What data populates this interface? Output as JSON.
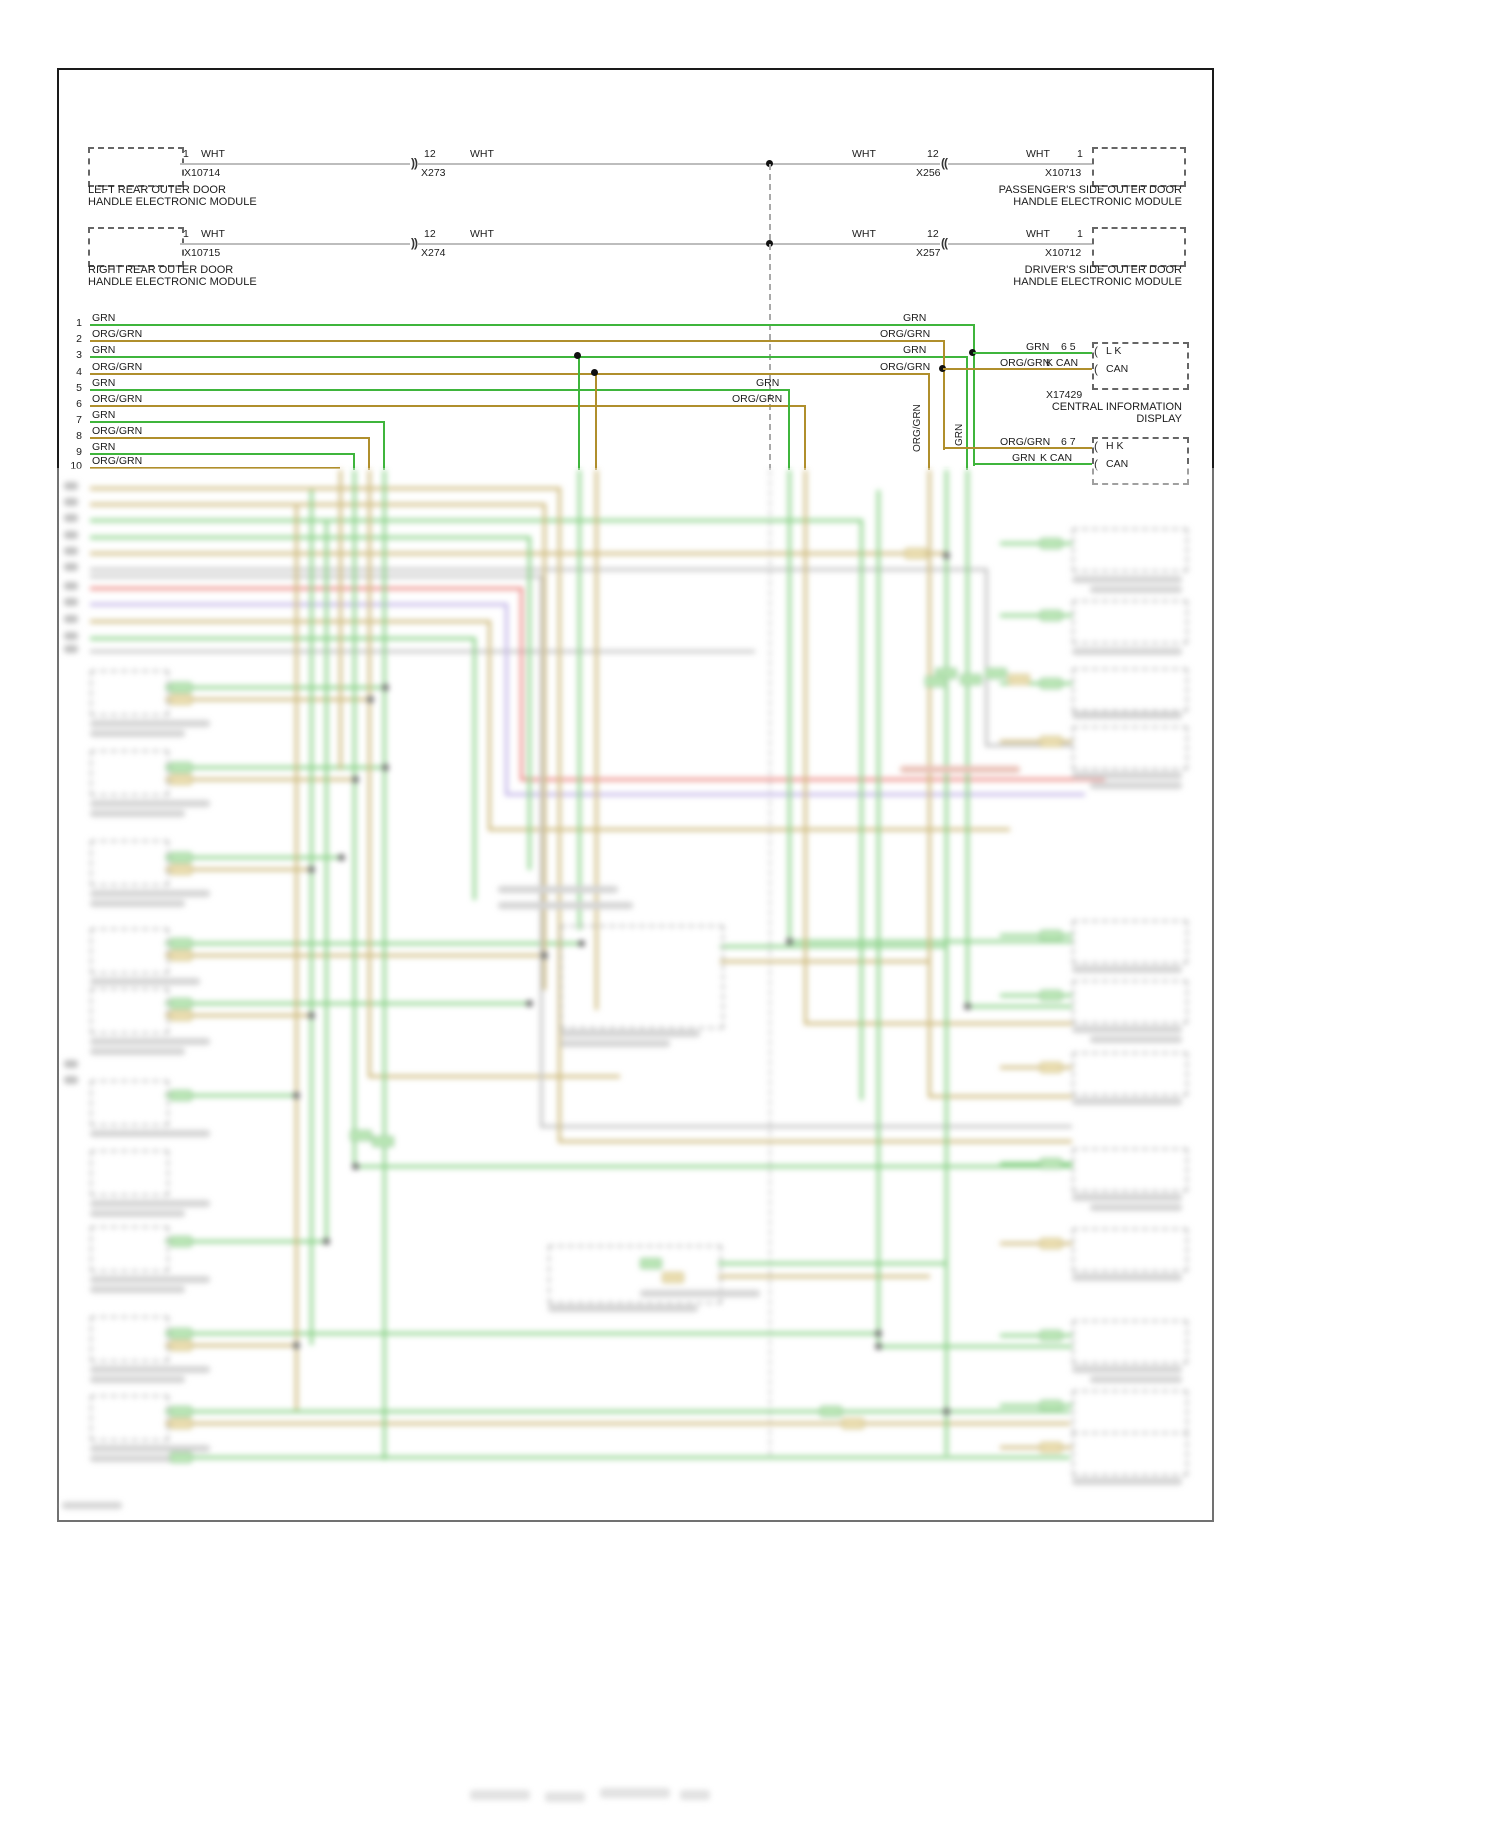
{
  "modules": {
    "left_rear": {
      "line1": "LEFT REAR OUTER DOOR",
      "line2": "HANDLE ELECTRONIC MODULE",
      "connector": "X10714",
      "pin": "1",
      "wire": "WHT"
    },
    "right_rear": {
      "line1": "RIGHT REAR OUTER DOOR",
      "line2": "HANDLE ELECTRONIC MODULE",
      "connector": "X10715",
      "pin": "1",
      "wire": "WHT"
    },
    "passenger": {
      "line1": "PASSENGER'S SIDE OUTER DOOR",
      "line2": "HANDLE ELECTRONIC MODULE",
      "connector": "X10713",
      "pin": "1",
      "wire": "WHT"
    },
    "driver": {
      "line1": "DRIVER'S SIDE OUTER DOOR",
      "line2": "HANDLE ELECTRONIC MODULE",
      "connector": "X10712",
      "pin": "1",
      "wire": "WHT"
    }
  },
  "inline_connectors": {
    "x273": {
      "id": "X273",
      "pin": "12",
      "wire": "WHT"
    },
    "x274": {
      "id": "X274",
      "pin": "12",
      "wire": "WHT"
    },
    "x256": {
      "id": "X256",
      "pin": "12",
      "wire": "WHT"
    },
    "x257": {
      "id": "X257",
      "pin": "12",
      "wire": "WHT"
    }
  },
  "display": {
    "name1": "CENTRAL INFORMATION",
    "name2": "DISPLAY",
    "connector": "X17429",
    "conn_top": {
      "wire1": "GRN",
      "pins": "6 5",
      "sig1": "L K",
      "wire2": "ORG/GRN",
      "net2": "K CAN",
      "sig2": "CAN"
    },
    "conn_bottom": {
      "wire1": "ORG/GRN",
      "pins": "6 7",
      "sig1": "H K",
      "wire2": "GRN",
      "net2": "K CAN",
      "sig2": "CAN"
    }
  },
  "bus": {
    "rows": [
      {
        "num": "1",
        "wire": "GRN"
      },
      {
        "num": "2",
        "wire": "ORG/GRN"
      },
      {
        "num": "3",
        "wire": "GRN"
      },
      {
        "num": "4",
        "wire": "ORG/GRN"
      },
      {
        "num": "5",
        "wire": "GRN"
      },
      {
        "num": "6",
        "wire": "ORG/GRN"
      },
      {
        "num": "7",
        "wire": "GRN"
      },
      {
        "num": "8",
        "wire": "ORG/GRN"
      },
      {
        "num": "9",
        "wire": "GRN"
      },
      {
        "num": "10",
        "wire": "ORG/GRN"
      }
    ],
    "right_labels": [
      "GRN",
      "ORG/GRN",
      "GRN",
      "ORG/GRN",
      "GRN",
      "ORG/GRN"
    ],
    "vertical_labels": [
      "ORG/GRN",
      "GRN"
    ]
  },
  "colors": {
    "grn": "#3fb53c",
    "org_grn": "#b08f2c",
    "wht": "#bdbdbd",
    "red": "#e04038",
    "violet": "#9b85d8"
  }
}
